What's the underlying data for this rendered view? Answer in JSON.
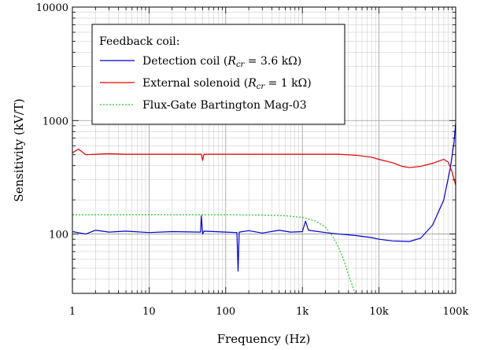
{
  "chart_data": {
    "type": "line",
    "xlabel": "Frequency (Hz)",
    "ylabel": "Sensitivity (kV/T)",
    "xscale": "log",
    "yscale": "log",
    "xlim": [
      1,
      100000
    ],
    "ylim": [
      30,
      10000
    ],
    "grid": true,
    "legend_placement": "top-left",
    "legend_title": "Feedback coil:",
    "x_ticks": [
      {
        "value": 1,
        "label": "1"
      },
      {
        "value": 10,
        "label": "10"
      },
      {
        "value": 100,
        "label": "100"
      },
      {
        "value": 1000,
        "label": "1k"
      },
      {
        "value": 10000,
        "label": "10k"
      },
      {
        "value": 100000,
        "label": "100k"
      }
    ],
    "y_ticks": [
      {
        "value": 100,
        "label": "100"
      },
      {
        "value": 1000,
        "label": "1000"
      },
      {
        "value": 10000,
        "label": "10000"
      }
    ],
    "series": [
      {
        "name": "Detection coil (R_cr = 3.6 kΩ)",
        "legend_parts": [
          "Detection coil (",
          "R",
          "cr",
          " = 3.6 kΩ)"
        ],
        "color": "#0000cc",
        "style": "solid",
        "x": [
          1,
          1.5,
          2,
          3,
          5,
          10,
          20,
          47,
          48,
          50,
          52,
          100,
          140,
          145,
          150,
          200,
          300,
          500,
          700,
          1000,
          1100,
          1200,
          2000,
          3000,
          5000,
          8000,
          10000,
          15000,
          25000,
          35000,
          50000,
          70000,
          85000,
          95000,
          100000
        ],
        "y": [
          105,
          100,
          108,
          104,
          106,
          103,
          105,
          104,
          145,
          100,
          106,
          104,
          103,
          47,
          104,
          107,
          102,
          108,
          104,
          105,
          130,
          108,
          103,
          100,
          97,
          93,
          90,
          87,
          86,
          92,
          120,
          200,
          380,
          640,
          950
        ]
      },
      {
        "name": "External solenoid (R_cr = 1 kΩ)",
        "legend_parts": [
          "External solenoid (",
          "R",
          "cr",
          " = 1 kΩ)"
        ],
        "color": "#e60000",
        "style": "solid",
        "x": [
          1,
          1.2,
          1.5,
          2,
          3,
          5,
          10,
          20,
          48,
          50,
          52,
          100,
          200,
          500,
          1000,
          2000,
          3000,
          5000,
          8000,
          10000,
          15000,
          20000,
          25000,
          35000,
          50000,
          70000,
          80000,
          90000,
          100000
        ],
        "y": [
          520,
          560,
          500,
          505,
          510,
          505,
          505,
          505,
          505,
          445,
          505,
          505,
          505,
          505,
          505,
          505,
          505,
          495,
          475,
          455,
          425,
          395,
          385,
          395,
          420,
          455,
          430,
          350,
          270
        ]
      },
      {
        "name": "Flux-Gate Bartington Mag-03",
        "legend_parts": [
          "Flux-Gate Bartington Mag-03"
        ],
        "color": "#22cc22",
        "style": "dotted",
        "x": [
          1,
          10,
          100,
          300,
          600,
          1000,
          1500,
          2000,
          2500,
          3000,
          3500,
          4000,
          4500,
          5000
        ],
        "y": [
          148,
          148,
          148,
          147,
          145,
          140,
          130,
          115,
          95,
          75,
          58,
          44,
          35,
          28
        ]
      }
    ]
  }
}
